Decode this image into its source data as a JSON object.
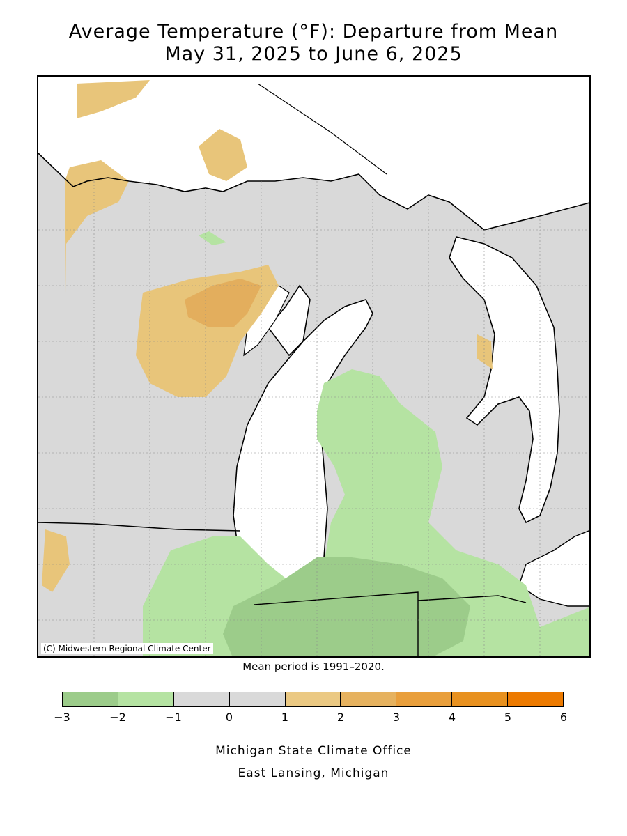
{
  "title": {
    "line1": "Average Temperature (°F): Departure from Mean",
    "line2": "May 31, 2025 to June 6, 2025"
  },
  "map": {
    "copyright": "(C) Midwestern Regional Climate Center",
    "region_colors": {
      "background": "#d9d9d9",
      "water": "#ffffff",
      "minus3_minus2": "#9ccc8a",
      "minus2_minus1": "#b5e3a2",
      "minus1_zero": "#d9d9d9",
      "zero_one": "#d9d9d9",
      "one_two": "#e8c57a",
      "two_three": "#e3ae5d"
    }
  },
  "mean_note": "Mean period is 1991–2020.",
  "legend": {
    "colors": [
      "#9ccc8a",
      "#b5e3a2",
      "#d9d9d9",
      "#d9d9d9",
      "#ebc983",
      "#e6b25f",
      "#e99f3c",
      "#e8911f",
      "#ec7a00"
    ],
    "ticks": [
      "−3",
      "−2",
      "−1",
      "0",
      "1",
      "2",
      "3",
      "4",
      "5",
      "6"
    ]
  },
  "credits": {
    "line1": "Michigan State Climate Office",
    "line2": "East Lansing, Michigan"
  }
}
